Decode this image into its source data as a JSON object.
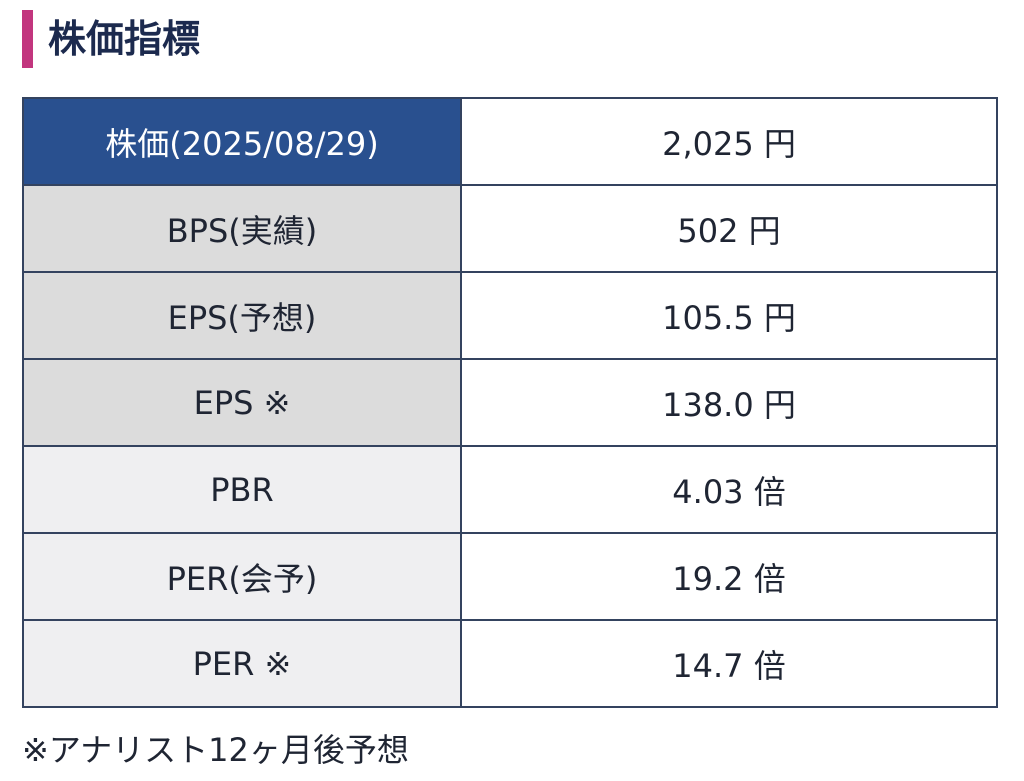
{
  "header": {
    "title": "株価指標"
  },
  "table": {
    "rows": [
      [
        "株価(2025/08/29)",
        "2,025 円"
      ],
      [
        "BPS(実績)",
        "502 円"
      ],
      [
        "EPS(予想)",
        "105.5 円"
      ],
      [
        "EPS ※",
        "138.0 円"
      ],
      [
        "PBR",
        "4.03 倍"
      ],
      [
        "PER(会予)",
        "19.2 倍"
      ],
      [
        "PER ※",
        "14.7 倍"
      ]
    ]
  },
  "footnote": "※アナリスト12ヶ月後予想"
}
